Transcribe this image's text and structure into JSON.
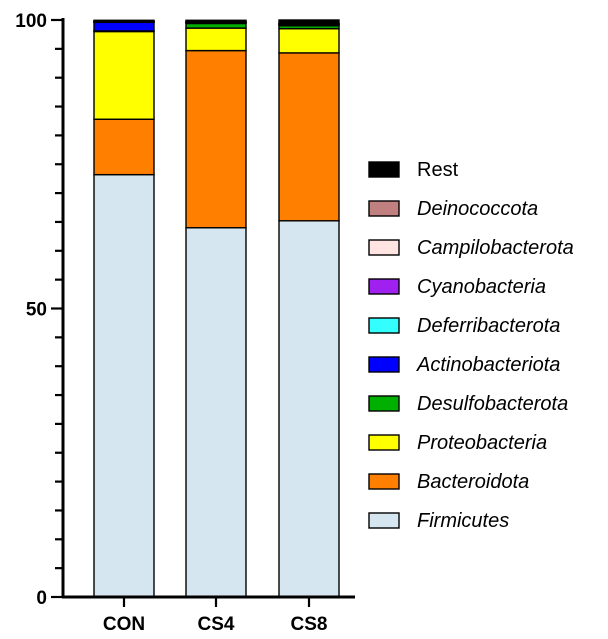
{
  "chart_data": {
    "type": "bar",
    "stacked": true,
    "title": "",
    "xlabel": "",
    "ylabel": "",
    "ylim": [
      0,
      100
    ],
    "yticks": [
      0,
      50,
      100
    ],
    "categories": [
      "CON",
      "CS4",
      "CS8"
    ],
    "legend_position": "right",
    "series": [
      {
        "name": "Firmicutes",
        "color": "#d6e6f0",
        "italic": true,
        "values": [
          73.2,
          64.0,
          65.2
        ]
      },
      {
        "name": "Bacteroidota",
        "color": "#ff8000",
        "italic": true,
        "values": [
          9.6,
          30.7,
          29.1
        ]
      },
      {
        "name": "Proteobacteria",
        "color": "#ffff00",
        "italic": true,
        "values": [
          15.2,
          3.9,
          4.2
        ]
      },
      {
        "name": "Desulfobacterota",
        "color": "#00b000",
        "italic": true,
        "values": [
          0.1,
          0.8,
          0.5
        ]
      },
      {
        "name": "Actinobacteriota",
        "color": "#0000ff",
        "italic": true,
        "values": [
          1.5,
          0.1,
          0.2
        ]
      },
      {
        "name": "Deferribacterota",
        "color": "#33ffff",
        "italic": true,
        "values": [
          0.05,
          0.05,
          0.05
        ]
      },
      {
        "name": "Cyanobacteria",
        "color": "#a020f0",
        "italic": true,
        "values": [
          0.05,
          0.05,
          0.05
        ]
      },
      {
        "name": "Campilobacterota",
        "color": "#ffe4e1",
        "italic": true,
        "values": [
          0.05,
          0.05,
          0.05
        ]
      },
      {
        "name": "Deinococcota",
        "color": "#c08080",
        "italic": true,
        "values": [
          0.05,
          0.05,
          0.05
        ]
      },
      {
        "name": "Rest",
        "color": "#000000",
        "italic": false,
        "values": [
          0.15,
          0.25,
          0.6
        ]
      }
    ]
  }
}
